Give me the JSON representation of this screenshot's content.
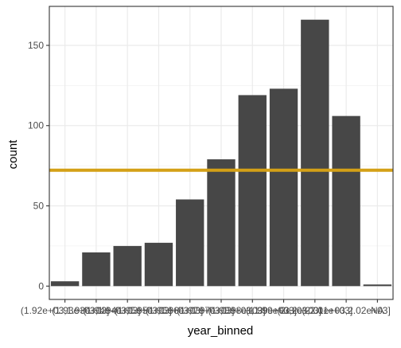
{
  "chart_data": {
    "type": "bar",
    "xlabel": "year_binned",
    "ylabel": "count",
    "categories": [
      "(1.92e+03,1.93e+03]",
      "(1.93e+03,1.94e+03]",
      "(1.94e+03,1.95e+03]",
      "(1.95e+03,1.96e+03]",
      "(1.96e+03,1.97e+03]",
      "(1.97e+03,1.98e+03]",
      "(1.98e+03,1.99e+03]",
      "(1.99e+03,2e+03]",
      "(2e+03,2.01e+03]",
      "(2.01e+03,2.02e+03]",
      "NA"
    ],
    "values": [
      3,
      21,
      25,
      27,
      54,
      79,
      119,
      123,
      166,
      106,
      1
    ],
    "ylim": [
      -8.3,
      174.3
    ],
    "yticks": [
      0,
      50,
      100,
      150
    ],
    "hline": {
      "y": 72.2,
      "color": "#D4A017"
    },
    "bar_color": "#474747",
    "panel_border_color": "#333333",
    "grid": true
  }
}
